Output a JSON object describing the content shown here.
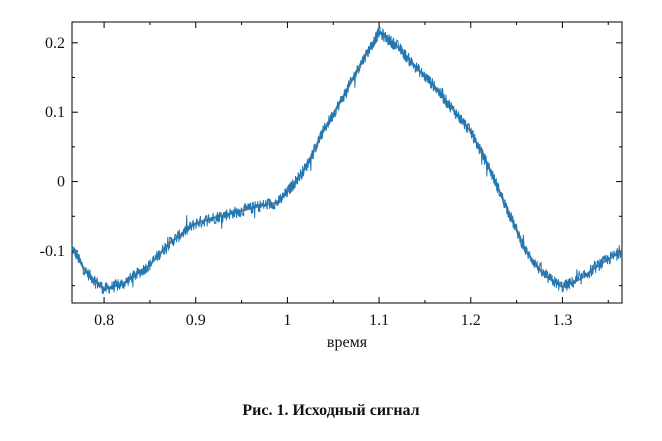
{
  "caption": "Рис. 1. Исходный сигнал",
  "colors": {
    "signal": "#1f77b4",
    "trend": "#7a7a7a",
    "axis": "#000000"
  },
  "chart_data": {
    "type": "line",
    "title": "",
    "xlabel": "время",
    "ylabel": "",
    "xlim": [
      0.765,
      1.365
    ],
    "ylim": [
      -0.175,
      0.23
    ],
    "xticks": [
      {
        "value": 0.8,
        "label": "0.8"
      },
      {
        "value": 0.9,
        "label": "0.9"
      },
      {
        "value": 1.0,
        "label": "1"
      },
      {
        "value": 1.1,
        "label": "1.1"
      },
      {
        "value": 1.2,
        "label": "1.2"
      },
      {
        "value": 1.3,
        "label": "1.3"
      }
    ],
    "yticks": [
      {
        "value": 0.2,
        "label": "0.2"
      },
      {
        "value": 0.1,
        "label": "0.1"
      },
      {
        "value": 0.0,
        "label": "0"
      },
      {
        "value": -0.1,
        "label": "-0.1"
      }
    ],
    "grid": false,
    "legend": "none",
    "series": [
      {
        "x": [
          0.765,
          0.78,
          0.8,
          0.82,
          0.85,
          0.87,
          0.9,
          0.92,
          0.95,
          0.97,
          0.99,
          1.0,
          1.02,
          1.04,
          1.06,
          1.08,
          1.1,
          1.11,
          1.12,
          1.14,
          1.16,
          1.18,
          1.2,
          1.22,
          1.24,
          1.26,
          1.28,
          1.3,
          1.32,
          1.34,
          1.365
        ],
        "values": [
          -0.095,
          -0.13,
          -0.155,
          -0.148,
          -0.12,
          -0.09,
          -0.06,
          -0.052,
          -0.042,
          -0.035,
          -0.03,
          -0.015,
          0.02,
          0.075,
          0.12,
          0.17,
          0.215,
          0.205,
          0.195,
          0.165,
          0.138,
          0.105,
          0.072,
          0.02,
          -0.04,
          -0.1,
          -0.135,
          -0.152,
          -0.14,
          -0.12,
          -0.1
        ]
      }
    ]
  }
}
